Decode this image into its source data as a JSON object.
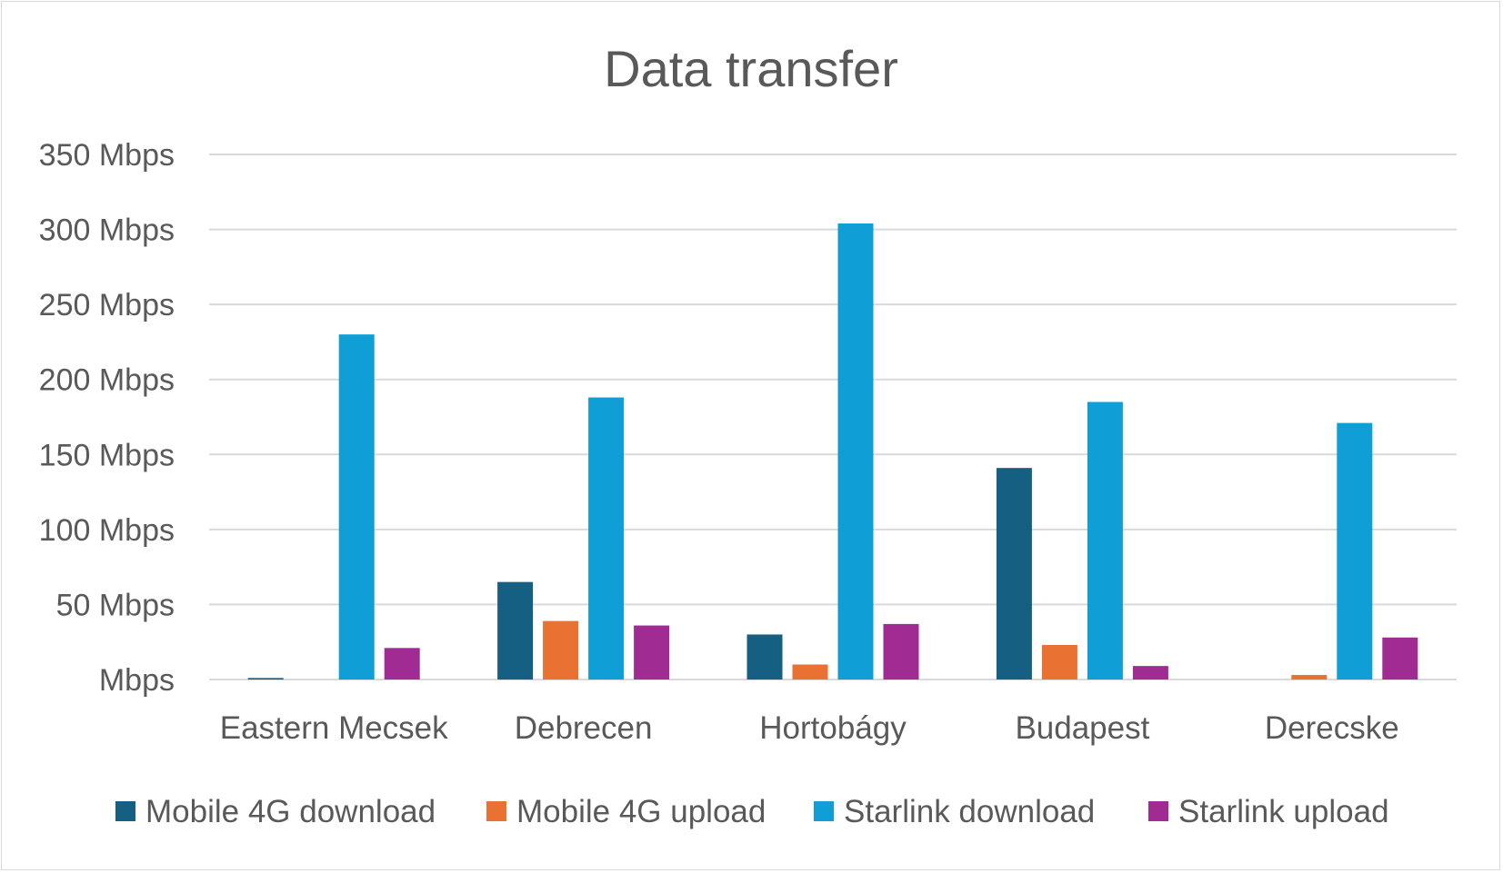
{
  "chart_data": {
    "type": "bar",
    "title": "Data transfer",
    "xlabel": "",
    "ylabel": "",
    "categories": [
      "Eastern Mecsek",
      "Debrecen",
      "Hortobágy",
      "Budapest",
      "Derecske"
    ],
    "series": [
      {
        "name": "Mobile 4G download",
        "color": "#156082",
        "values": [
          1,
          65,
          30,
          141,
          0
        ]
      },
      {
        "name": "Mobile 4G upload",
        "color": "#E97132",
        "values": [
          0,
          39,
          10,
          23,
          3
        ]
      },
      {
        "name": "Starlink download",
        "color": "#0F9ED5",
        "values": [
          230,
          188,
          304,
          185,
          171
        ]
      },
      {
        "name": "Starlink upload",
        "color": "#A02B93",
        "values": [
          21,
          36,
          37,
          9,
          28
        ]
      }
    ],
    "ylim": [
      0,
      350
    ],
    "yticks": [
      0,
      50,
      100,
      150,
      200,
      250,
      300,
      350
    ],
    "ytick_labels": [
      "Mbps",
      "50 Mbps",
      "100 Mbps",
      "150 Mbps",
      "200 Mbps",
      "250 Mbps",
      "300 Mbps",
      "350 Mbps"
    ],
    "grid": true,
    "legend_position": "bottom",
    "gridline_color": "#d9d9d9",
    "text_color": "#595959"
  }
}
